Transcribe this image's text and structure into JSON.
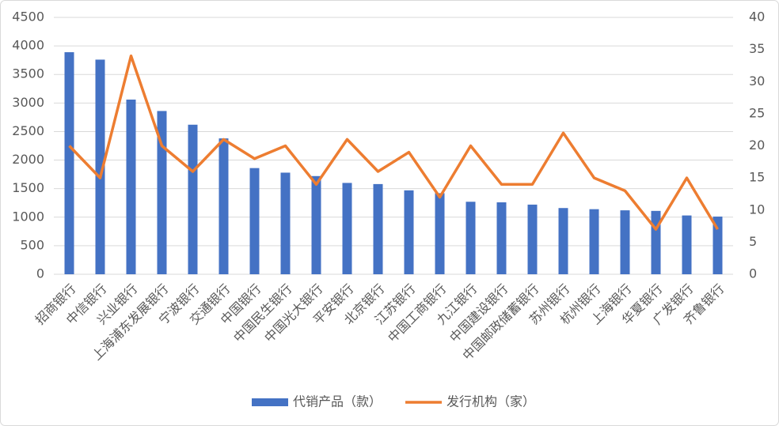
{
  "chart_data": {
    "type": "bar",
    "categories": [
      "招商银行",
      "中信银行",
      "兴业银行",
      "上海浦东发展银行",
      "宁波银行",
      "交通银行",
      "中国银行",
      "中国民生银行",
      "中国光大银行",
      "平安银行",
      "北京银行",
      "江苏银行",
      "中国工商银行",
      "九江银行",
      "中国建设银行",
      "中国邮政储蓄银行",
      "苏州银行",
      "杭州银行",
      "上海银行",
      "华夏银行",
      "广发银行",
      "齐鲁银行"
    ],
    "series": [
      {
        "name": "代销产品（款）",
        "type": "bar",
        "color": "#4472c4",
        "values": [
          3890,
          3760,
          3060,
          2860,
          2620,
          2380,
          1860,
          1780,
          1720,
          1600,
          1580,
          1470,
          1420,
          1270,
          1260,
          1220,
          1160,
          1140,
          1120,
          1110,
          1030,
          1010
        ]
      },
      {
        "name": "发行机构（家）",
        "type": "line",
        "color": "#ed7d31",
        "axis": "y2",
        "values": [
          20,
          15,
          34,
          20,
          16,
          21,
          18,
          20,
          14,
          21,
          16,
          19,
          12,
          20,
          14,
          14,
          22,
          15,
          13,
          7,
          15,
          7
        ]
      }
    ],
    "ylim": [
      0,
      4500
    ],
    "yticks": [
      0,
      500,
      1000,
      1500,
      2000,
      2500,
      3000,
      3500,
      4000,
      4500
    ],
    "y2lim": [
      0,
      40
    ],
    "y2ticks": [
      0,
      5,
      10,
      15,
      20,
      25,
      30,
      35,
      40
    ],
    "grid": true,
    "legend": "bottom"
  }
}
